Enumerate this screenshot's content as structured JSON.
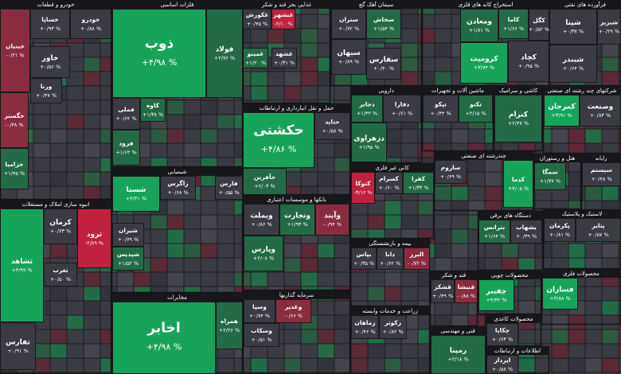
{
  "sectors": [
    {
      "title": "خودرو و قطعات",
      "tiles": [
        {
          "name": "خبنیان",
          "change": "-۰/۲۱ %",
          "color": "#8a2c40"
        },
        {
          "name": "خساپا",
          "change": "+۰/۹۳ %",
          "color": "#3b3b44"
        },
        {
          "name": "خودرو",
          "change": "+۰/۸۸ %",
          "color": "#3b3b44"
        },
        {
          "name": "خاور",
          "change": "+۰/۵۶ %",
          "color": "#3b3b44"
        },
        {
          "name": "ورنا",
          "change": "+۰/۴۷ %",
          "color": "#3b3b44"
        },
        {
          "name": "خگستر",
          "change": "-۰/۳۸ %",
          "color": "#8a2c40"
        },
        {
          "name": "خزامیا",
          "change": "+۱/۴۵ %",
          "color": "#236b46"
        }
      ]
    },
    {
      "title": "فلزات اساسی",
      "tiles": [
        {
          "name": "ذوب",
          "change": "+۴/۹۸ %",
          "color": "#17a35a"
        },
        {
          "name": "فولاد",
          "change": "+۲/۷۶ %",
          "color": "#236b46"
        },
        {
          "name": "فملی",
          "change": "+۰/۶۲ %",
          "color": "#3b3b44"
        },
        {
          "name": "فرود",
          "change": "+۱/۶۲ %",
          "color": "#236b46"
        },
        {
          "name": "کاوه",
          "change": "+۱/۳۸ %",
          "color": "#236b46"
        }
      ]
    },
    {
      "title": "غذایی بجز قند و شکر",
      "tiles": [
        {
          "name": "غبشهر",
          "change": "-۲/۱۰ %",
          "color": "#c0213f"
        },
        {
          "name": "غکورش",
          "change": "+۰/۴۵ %",
          "color": "#3b3b44"
        },
        {
          "name": "غمینو",
          "change": "+۱/۲۰ %",
          "color": "#236b46"
        },
        {
          "name": "غشهد",
          "change": "+۰/۳۱ %",
          "color": "#3b3b44"
        }
      ]
    },
    {
      "title": "سیمان آهک گچ",
      "tiles": [
        {
          "name": "ستران",
          "change": "+۰/۷۲ %",
          "color": "#3b3b44"
        },
        {
          "name": "سخاش",
          "change": "+۱/۵۴ %",
          "color": "#236b46"
        },
        {
          "name": "سبهان",
          "change": "+۰/۸۹ %",
          "color": "#3b3b44"
        },
        {
          "name": "سفارس",
          "change": "+۰/۴۰ %",
          "color": "#3b3b44"
        }
      ]
    },
    {
      "title": "استخراج کانه های فلزی",
      "tiles": [
        {
          "name": "ومعادن",
          "change": "+۱/۸۱ %",
          "color": "#236b46"
        },
        {
          "name": "کاما",
          "change": "+۱/۶۶ %",
          "color": "#236b46"
        },
        {
          "name": "کگل",
          "change": "+۰/۵۲ %",
          "color": "#3b3b44"
        },
        {
          "name": "کرومیت",
          "change": "+۳/۷۴ %",
          "color": "#17a35a"
        },
        {
          "name": "کچاد",
          "change": "+۰/۹۵ %",
          "color": "#3b3b44"
        }
      ]
    },
    {
      "title": "فرآورده های نفتی",
      "tiles": [
        {
          "name": "شپنا",
          "change": "+۰/۳۷ %",
          "color": "#3b3b44"
        },
        {
          "name": "شبندر",
          "change": "+۰/۶۴ %",
          "color": "#3b3b44"
        },
        {
          "name": "شبریز",
          "change": "+۰/۲۹ %",
          "color": "#3b3b44"
        }
      ]
    },
    {
      "title": "حمل و نقل انبارداری و ارتباطات",
      "tiles": [
        {
          "name": "حکشتی",
          "change": "+۴/۸۶ %",
          "color": "#17a35a"
        },
        {
          "name": "حتاید",
          "change": "+۰/۵۸ %",
          "color": "#3b3b44"
        },
        {
          "name": "حآفرین",
          "change": "+۲/۰۳ %",
          "color": "#236b46"
        }
      ]
    },
    {
      "title": "دارویی",
      "tiles": [
        {
          "name": "دجابر",
          "change": "+۱/۴۲ %",
          "color": "#236b46"
        },
        {
          "name": "دفارا",
          "change": "+۰/۶۱ %",
          "color": "#3b3b44"
        },
        {
          "name": "دزهراوی",
          "change": "+۱/۹۵ %",
          "color": "#236b46"
        }
      ]
    },
    {
      "title": "ماشین آلات و تجهیزات",
      "tiles": [
        {
          "name": "تپکو",
          "change": "+۰/۴۴ %",
          "color": "#3b3b44"
        },
        {
          "name": "تکنو",
          "change": "+۲/۱۵ %",
          "color": "#236b46"
        }
      ]
    },
    {
      "title": "کاشی و سرامیک",
      "tiles": [
        {
          "name": "کنرام",
          "change": "+۲/۴۷ %",
          "color": "#236b46"
        }
      ]
    },
    {
      "title": "شرکتهای چند رشته ای صنعتی",
      "tiles": [
        {
          "name": "کمرجان",
          "change": "+۳/۹۱ %",
          "color": "#17a35a"
        },
        {
          "name": "وصنعت",
          "change": "+۰/۸۳ %",
          "color": "#3b3b44"
        }
      ]
    },
    {
      "title": "چندرشته ای صنعتی",
      "tiles": [
        {
          "name": "ساروم",
          "change": "+۰/۶۹ %",
          "color": "#3b3b44"
        },
        {
          "name": "کدما",
          "change": "+۴/۰۵ %",
          "color": "#17a35a"
        }
      ]
    },
    {
      "title": "هتل و رستوران",
      "tiles": [
        {
          "name": "سمگا",
          "change": "+۱/۷۷ %",
          "color": "#236b46"
        }
      ]
    },
    {
      "title": "رایانه",
      "tiles": [
        {
          "name": "سیستم",
          "change": "+۰/۴۸ %",
          "color": "#3b3b44"
        }
      ]
    },
    {
      "title": "انبوه سازی املاک و مستغلات",
      "tiles": [
        {
          "name": "ثشاهد",
          "change": "+۴/۹۹ %",
          "color": "#17a35a"
        },
        {
          "name": "کرمان",
          "change": "+۰/۷۳ %",
          "color": "#3b3b44"
        },
        {
          "name": "ثرود",
          "change": "-۲/۸۹ %",
          "color": "#c0213f"
        },
        {
          "name": "ثغرب",
          "change": "+۰/۵۰ %",
          "color": "#3b3b44"
        },
        {
          "name": "تفارس",
          "change": "+۰/۹۱ %",
          "color": "#3b3b44"
        }
      ]
    },
    {
      "title": "شیمیایی",
      "tiles": [
        {
          "name": "شستا",
          "change": "+۴/۲۱ %",
          "color": "#17a35a"
        },
        {
          "name": "زاگرس",
          "change": "+۰/۶۸ %",
          "color": "#3b3b44"
        },
        {
          "name": "فارس",
          "change": "+۰/۵۵ %",
          "color": "#3b3b44"
        },
        {
          "name": "شیران",
          "change": "+۰/۷۹ %",
          "color": "#3b3b44"
        },
        {
          "name": "شپدیس",
          "change": "+۱/۵۲ %",
          "color": "#236b46"
        }
      ]
    },
    {
      "title": "بانکها و موسسات اعتباری",
      "tiles": [
        {
          "name": "وبملت",
          "change": "+۰/۸۶ %",
          "color": "#3b3b44"
        },
        {
          "name": "وتجارت",
          "change": "+۱/۹۳ %",
          "color": "#236b46"
        },
        {
          "name": "وآیند",
          "change": "-۰/۹۴ %",
          "color": "#8a2c40"
        },
        {
          "name": "وپارس",
          "change": "+۲/۰۸ %",
          "color": "#236b46"
        }
      ]
    },
    {
      "title": "کانی غیر فلزی",
      "tiles": [
        {
          "name": "کتوکا",
          "change": "-۳/۱۲ %",
          "color": "#c0213f"
        },
        {
          "name": "کسرام",
          "change": "+۰/۶۰ %",
          "color": "#3b3b44"
        },
        {
          "name": "کفرا",
          "change": "+۱/۳۳ %",
          "color": "#236b46"
        }
      ]
    },
    {
      "title": "دستگاه های برقی",
      "tiles": [
        {
          "name": "بترانس",
          "change": "+۱/۶۴ %",
          "color": "#236b46"
        },
        {
          "name": "بشهاب",
          "change": "+۰/۳۹ %",
          "color": "#3b3b44"
        }
      ]
    },
    {
      "title": "لاستیک و پلاستیک",
      "tiles": [
        {
          "name": "پکرمان",
          "change": "+۰/۸۱ %",
          "color": "#3b3b44"
        },
        {
          "name": "پتایر",
          "change": "+۰/۵۷ %",
          "color": "#3b3b44"
        }
      ]
    },
    {
      "title": "بیمه و بازنشستگی",
      "tiles": [
        {
          "name": "بپاس",
          "change": "+۰/۳۵ %",
          "color": "#3b3b44"
        },
        {
          "name": "دانا",
          "change": "+۰/۶۲ %",
          "color": "#3b3b44"
        },
        {
          "name": "البرز",
          "change": "-۰/۷۲ %",
          "color": "#8a2c40"
        }
      ]
    },
    {
      "title": "قند و شکر",
      "tiles": [
        {
          "name": "قشکر",
          "change": "+۰/۴۹ %",
          "color": "#3b3b44"
        },
        {
          "name": "قنیشا",
          "change": "-۰/۸۸ %",
          "color": "#8a2c40"
        }
      ]
    },
    {
      "title": "محصولات چوبی",
      "tiles": [
        {
          "name": "چفیبر",
          "change": "+۴/۴۲ %",
          "color": "#17a35a"
        }
      ]
    },
    {
      "title": "محصولات فلزی",
      "tiles": [
        {
          "name": "فسازان",
          "change": "+۳/۸۸ %",
          "color": "#17a35a"
        }
      ]
    },
    {
      "title": "مخابرات",
      "tiles": [
        {
          "name": "اخابر",
          "change": "+۴/۹۸ %",
          "color": "#17a35a"
        },
        {
          "name": "همراه",
          "change": "+۲/۲۶ %",
          "color": "#236b46"
        }
      ]
    },
    {
      "title": "سرمایه گذاریها",
      "tiles": [
        {
          "name": "وسپا",
          "change": "+۰/۷۴ %",
          "color": "#3b3b44"
        },
        {
          "name": "وغدیر",
          "change": "-۰/۶۶ %",
          "color": "#8a2c40"
        },
        {
          "name": "وسکاب",
          "change": "+۰/۵۱ %",
          "color": "#3b3b44"
        }
      ]
    },
    {
      "title": "زراعت و خدمات وابسته",
      "tiles": [
        {
          "name": "زماهان",
          "change": "+۰/۴۶ %",
          "color": "#3b3b44"
        },
        {
          "name": "زکوثر",
          "change": "+۰/۸۲ %",
          "color": "#3b3b44"
        }
      ]
    },
    {
      "title": "فنی و مهندسی",
      "tiles": [
        {
          "name": "رمپنا",
          "change": "+۲/۱۸ %",
          "color": "#236b46"
        }
      ]
    },
    {
      "title": "محصولات کاغذی",
      "tiles": [
        {
          "name": "چکاپا",
          "change": "+۰/۶۳ %",
          "color": "#3b3b44"
        }
      ]
    },
    {
      "title": "اطلاعات و ارتباطات",
      "tiles": [
        {
          "name": "اپرداز",
          "change": "+۰/۵۸ %",
          "color": "#3b3b44"
        }
      ]
    }
  ]
}
